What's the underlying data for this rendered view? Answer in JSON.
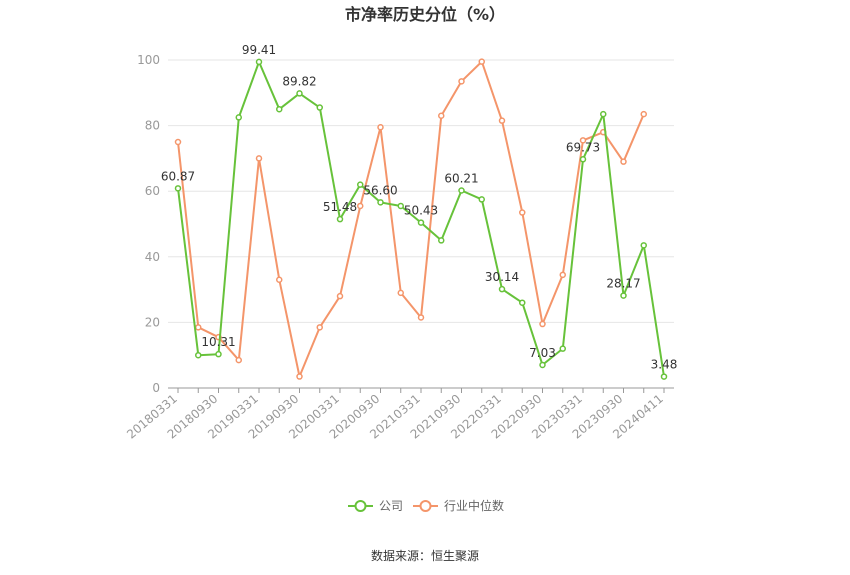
{
  "chart_data": {
    "type": "line",
    "title": "市净率历史分位（%）",
    "xlabel": "",
    "ylabel": "",
    "ylim": [
      0,
      100
    ],
    "yticks": [
      0,
      20,
      40,
      60,
      80,
      100
    ],
    "grid": true,
    "legend_position": "bottom",
    "x_all": [
      "20180331",
      "20180630",
      "20180930",
      "20181231",
      "20190331",
      "20190630",
      "20190930",
      "20191231",
      "20200331",
      "20200630",
      "20200930",
      "20201231",
      "20210331",
      "20210630",
      "20210930",
      "20211231",
      "20220331",
      "20220630",
      "20220930",
      "20221231",
      "20230331",
      "20230630",
      "20230930",
      "20231231",
      "20240411"
    ],
    "x_tick_labels": [
      "20180331",
      "20180930",
      "20190331",
      "20190930",
      "20200331",
      "20200930",
      "20210331",
      "20210930",
      "20220331",
      "20220930",
      "20230331",
      "20230930",
      "20240411"
    ],
    "series": [
      {
        "name": "公司",
        "color": "#67c23a",
        "values": [
          60.87,
          10.0,
          10.31,
          82.5,
          99.41,
          85.0,
          89.82,
          85.5,
          51.48,
          62.0,
          56.6,
          55.5,
          50.43,
          45.0,
          60.21,
          57.5,
          30.14,
          26.0,
          7.03,
          12.0,
          69.73,
          83.5,
          28.17,
          43.5,
          3.48
        ],
        "labels": {
          "0": "60.87",
          "2": "10.31",
          "4": "99.41",
          "6": "89.82",
          "8": "51.48",
          "10": "56.60",
          "12": "50.43",
          "14": "60.21",
          "16": "30.14",
          "18": "7.03",
          "20": "69.73",
          "22": "28.17",
          "24": "3.48"
        }
      },
      {
        "name": "行业中位数",
        "color": "#f4956a",
        "values": [
          75.0,
          18.5,
          15.5,
          8.5,
          70.0,
          33.0,
          3.5,
          18.5,
          28.0,
          55.5,
          79.5,
          29.0,
          21.5,
          83.0,
          93.5,
          99.5,
          81.5,
          53.5,
          19.5,
          34.5,
          75.5,
          78.0,
          69.0,
          83.5,
          null
        ]
      }
    ]
  },
  "footer": {
    "source": "数据来源：恒生聚源"
  }
}
